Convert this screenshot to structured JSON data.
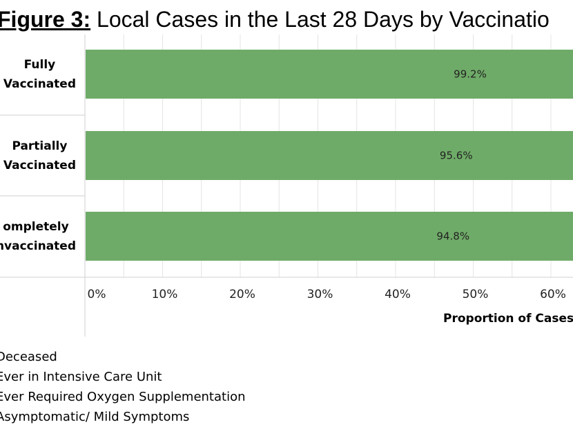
{
  "title": {
    "figure_label": "Figure 3:",
    "text": "Local Cases in the Last 28 Days by Vaccinatio"
  },
  "categories": [
    [
      "Fully",
      "Vaccinated"
    ],
    [
      "Partially",
      "Vaccinated"
    ],
    [
      "ompletely",
      "nvaccinated"
    ]
  ],
  "legend": [
    "Deceased",
    "Ever in Intensive Care Unit",
    "Ever Required Oxygen Supplementation",
    "Asymptomatic/ Mild Symptoms"
  ],
  "colors": {
    "bar": "#6fab68",
    "grid": "#e4e4e4",
    "axis": "#cfcfcf"
  },
  "chart_data": {
    "type": "bar",
    "orientation": "horizontal",
    "categories": [
      "Fully Vaccinated",
      "Partially Vaccinated",
      "Completely Unvaccinated"
    ],
    "values": [
      99.2,
      95.6,
      94.8
    ],
    "value_labels": [
      "99.2%",
      "95.6%",
      "94.8%"
    ],
    "xlabel": "Proportion of Cases",
    "xticks": [
      "0%",
      "10%",
      "20%",
      "30%",
      "40%",
      "50%",
      "60%"
    ],
    "xlim": [
      0,
      100
    ],
    "grid": true
  }
}
